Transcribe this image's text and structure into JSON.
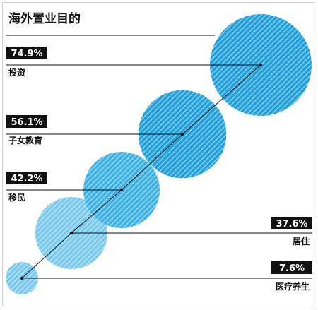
{
  "chart_data": {
    "type": "bubble",
    "title": "海外置业目的",
    "categories": [
      "投资",
      "子女教育",
      "移民",
      "居住",
      "医疗养生"
    ],
    "values": [
      74.9,
      56.1,
      42.2,
      37.6,
      7.6
    ],
    "value_labels": [
      "74.9%",
      "56.1%",
      "42.2%",
      "37.6%",
      "7.6%"
    ],
    "unit": "%",
    "grid": false,
    "legend": "none",
    "colors": {
      "bubble_fill_dark": "#1fa0dc",
      "bubble_fill_light": "#7fcdef",
      "stripe": "#ffffff",
      "label_bg": "#111111",
      "label_text": "#ffffff",
      "line": "#111111"
    }
  }
}
